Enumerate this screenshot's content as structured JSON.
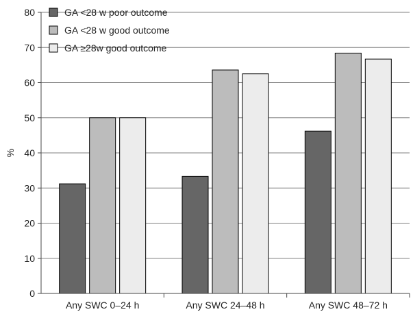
{
  "chart_data": {
    "type": "bar",
    "title": "",
    "xlabel": "",
    "ylabel": "%",
    "ylim": [
      0,
      80
    ],
    "yticks": [
      0,
      10,
      20,
      30,
      40,
      50,
      60,
      70,
      80
    ],
    "grid": true,
    "legend_position": "top-left",
    "categories": [
      "Any SWC 0–24 h",
      "Any SWC 24–48 h",
      "Any SWC 48–72 h"
    ],
    "series": [
      {
        "name": "GA <28 w poor outcome",
        "color": "#666666",
        "values": [
          31.2,
          33.3,
          46.2
        ]
      },
      {
        "name": "GA <28 w good outcome",
        "color": "#bcbcbc",
        "values": [
          50.0,
          63.6,
          68.4
        ]
      },
      {
        "name": "GA ≥28w good outcome",
        "color": "#ececec",
        "values": [
          50.0,
          62.5,
          66.7
        ]
      }
    ]
  }
}
